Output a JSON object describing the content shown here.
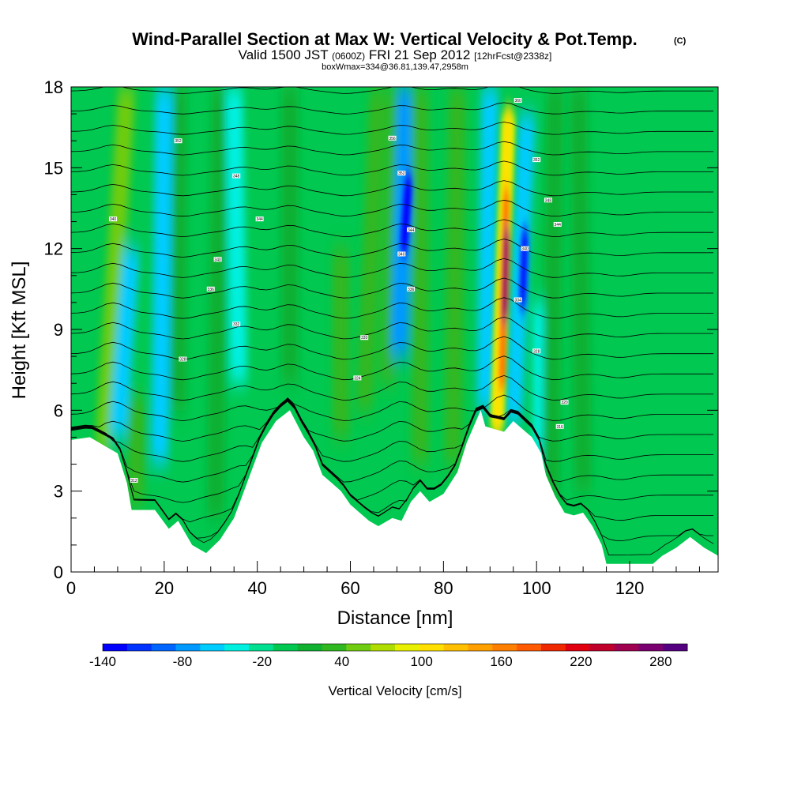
{
  "title": {
    "main": "Wind-Parallel Section at Max W: Vertical Velocity & Pot.Temp.",
    "copyright": "(C)",
    "valid_prefix": "Valid 1500 JST",
    "valid_utc": "(0600Z)",
    "valid_date": "FRI 21 Sep 2012",
    "forecast": "[12hrFcst@2338z]",
    "box": "boxWmax=334@36.81,139.47,2958m"
  },
  "chart_data": {
    "type": "heatmap",
    "xlabel": "Distance [nm]",
    "ylabel": "Height [Kft MSL]",
    "xlim": [
      0,
      139
    ],
    "ylim": [
      0,
      18
    ],
    "x_ticks": [
      0,
      20,
      40,
      60,
      80,
      100,
      120
    ],
    "y_ticks": [
      0,
      3,
      6,
      9,
      12,
      15,
      18
    ],
    "colorbar": {
      "label": "Vertical Velocity [cm/s]",
      "min": -140,
      "max": 300,
      "step": 20,
      "tick_labels": [
        "-140",
        "-80",
        "-20",
        "40",
        "100",
        "160",
        "220",
        "280"
      ],
      "tick_values": [
        -140,
        -80,
        -20,
        40,
        100,
        160,
        220,
        280
      ],
      "colors": [
        "#0000ff",
        "#0033ff",
        "#0066ff",
        "#0099ff",
        "#00ccff",
        "#00f0e0",
        "#00e090",
        "#00c850",
        "#10b030",
        "#30b820",
        "#70cc10",
        "#b0dd00",
        "#e8f000",
        "#ffe000",
        "#ffc000",
        "#ffa000",
        "#ff8000",
        "#ff5a00",
        "#f02800",
        "#e00010",
        "#c0002a",
        "#a00050",
        "#7a0070",
        "#550080"
      ]
    },
    "background_value": "-20 to 0",
    "terrain_height_kft": [
      {
        "x": 0,
        "h": 4.9
      },
      {
        "x": 4,
        "h": 5.0
      },
      {
        "x": 8,
        "h": 4.6
      },
      {
        "x": 10,
        "h": 4.4
      },
      {
        "x": 12,
        "h": 3.3
      },
      {
        "x": 13,
        "h": 2.3
      },
      {
        "x": 18,
        "h": 2.3
      },
      {
        "x": 21,
        "h": 1.6
      },
      {
        "x": 23,
        "h": 1.9
      },
      {
        "x": 26,
        "h": 1.0
      },
      {
        "x": 29,
        "h": 0.7
      },
      {
        "x": 32,
        "h": 1.2
      },
      {
        "x": 35,
        "h": 2.0
      },
      {
        "x": 38,
        "h": 3.4
      },
      {
        "x": 41,
        "h": 4.8
      },
      {
        "x": 44,
        "h": 5.6
      },
      {
        "x": 47,
        "h": 6.0
      },
      {
        "x": 50,
        "h": 5.0
      },
      {
        "x": 52,
        "h": 4.5
      },
      {
        "x": 54,
        "h": 3.6
      },
      {
        "x": 56,
        "h": 3.3
      },
      {
        "x": 58,
        "h": 3.0
      },
      {
        "x": 60,
        "h": 2.5
      },
      {
        "x": 64,
        "h": 1.9
      },
      {
        "x": 66,
        "h": 1.7
      },
      {
        "x": 69,
        "h": 2.0
      },
      {
        "x": 71,
        "h": 1.9
      },
      {
        "x": 73,
        "h": 2.6
      },
      {
        "x": 75,
        "h": 3.0
      },
      {
        "x": 77,
        "h": 2.6
      },
      {
        "x": 80,
        "h": 2.9
      },
      {
        "x": 83,
        "h": 3.7
      },
      {
        "x": 85,
        "h": 4.8
      },
      {
        "x": 88,
        "h": 6.0
      },
      {
        "x": 89,
        "h": 5.4
      },
      {
        "x": 91,
        "h": 5.3
      },
      {
        "x": 93,
        "h": 5.2
      },
      {
        "x": 95,
        "h": 5.6
      },
      {
        "x": 97,
        "h": 5.3
      },
      {
        "x": 99,
        "h": 5.0
      },
      {
        "x": 101,
        "h": 4.4
      },
      {
        "x": 102,
        "h": 3.6
      },
      {
        "x": 104,
        "h": 2.8
      },
      {
        "x": 106,
        "h": 2.2
      },
      {
        "x": 108,
        "h": 2.1
      },
      {
        "x": 110,
        "h": 2.2
      },
      {
        "x": 112,
        "h": 1.7
      },
      {
        "x": 114,
        "h": 1.0
      },
      {
        "x": 115,
        "h": 0.3
      },
      {
        "x": 125,
        "h": 0.3
      },
      {
        "x": 127,
        "h": 0.6
      },
      {
        "x": 130,
        "h": 0.9
      },
      {
        "x": 133,
        "h": 1.3
      },
      {
        "x": 136,
        "h": 0.9
      },
      {
        "x": 139,
        "h": 0.6
      }
    ],
    "plumes": [
      {
        "x0": 7,
        "x1": 12,
        "h0": 4.5,
        "h1": 18,
        "v": 60
      },
      {
        "x0": 14,
        "x1": 14,
        "h0": 2.5,
        "h1": 6.5,
        "v": 50
      },
      {
        "x0": 23,
        "x1": 23,
        "h0": 6,
        "h1": 18,
        "v": 30
      },
      {
        "x0": 31,
        "x1": 32,
        "h0": 2,
        "h1": 18,
        "v": 30
      },
      {
        "x0": 10,
        "x1": 13,
        "h0": 5,
        "h1": 12,
        "v": -60
      },
      {
        "x0": 19,
        "x1": 20,
        "h0": 4,
        "h1": 18,
        "v": -50
      },
      {
        "x0": 36,
        "x1": 35,
        "h0": 7,
        "h1": 18,
        "v": -40
      },
      {
        "x0": 47,
        "x1": 47,
        "h0": 7,
        "h1": 18,
        "v": 30
      },
      {
        "x0": 58,
        "x1": 58,
        "h0": 5,
        "h1": 12,
        "v": 40
      },
      {
        "x0": 63,
        "x1": 66,
        "h0": 6,
        "h1": 18,
        "v": 40
      },
      {
        "x0": 68,
        "x1": 70,
        "h0": 7,
        "h1": 18,
        "v": 50
      },
      {
        "x0": 70.5,
        "x1": 72,
        "h0": 8,
        "h1": 18,
        "v": -70
      },
      {
        "x0": 71.5,
        "x1": 72.5,
        "h0": 12,
        "h1": 14.5,
        "v": -140
      },
      {
        "x0": 75,
        "x1": 75,
        "h0": 4,
        "h1": 18,
        "v": 40
      },
      {
        "x0": 82,
        "x1": 83,
        "h0": 4,
        "h1": 18,
        "v": 40
      },
      {
        "x0": 89,
        "x1": 90,
        "h0": 6,
        "h1": 18,
        "v": -50
      },
      {
        "x0": 91.5,
        "x1": 94,
        "h0": 5.3,
        "h1": 17,
        "v": 100
      },
      {
        "x0": 92.5,
        "x1": 93.5,
        "h0": 7,
        "h1": 14,
        "v": 160
      },
      {
        "x0": 93,
        "x1": 93.5,
        "h0": 9.5,
        "h1": 12.5,
        "v": 240
      },
      {
        "x0": 95,
        "x1": 98,
        "h0": 5.5,
        "h1": 17,
        "v": -60
      },
      {
        "x0": 97,
        "x1": 97.5,
        "h0": 10,
        "h1": 12.5,
        "v": -120
      },
      {
        "x0": 101,
        "x1": 101,
        "h0": 4,
        "h1": 10,
        "v": -30
      },
      {
        "x0": 103,
        "x1": 104,
        "h0": 2.5,
        "h1": 18,
        "v": 30
      },
      {
        "x0": 110,
        "x1": 109,
        "h0": 3,
        "h1": 18,
        "v": 20
      }
    ],
    "contour_labels": [
      {
        "x": 9,
        "h": 13.1,
        "text": "340"
      },
      {
        "x": 23,
        "h": 16.0,
        "text": "352"
      },
      {
        "x": 35.5,
        "h": 14.7,
        "text": "348"
      },
      {
        "x": 40.5,
        "h": 13.1,
        "text": "344"
      },
      {
        "x": 31.5,
        "h": 11.6,
        "text": "340"
      },
      {
        "x": 30,
        "h": 10.5,
        "text": "336"
      },
      {
        "x": 35.5,
        "h": 9.2,
        "text": "332"
      },
      {
        "x": 24,
        "h": 7.9,
        "text": "328"
      },
      {
        "x": 13.5,
        "h": 3.4,
        "text": "312"
      },
      {
        "x": 69,
        "h": 16.1,
        "text": "356"
      },
      {
        "x": 71,
        "h": 14.8,
        "text": "352"
      },
      {
        "x": 73,
        "h": 12.7,
        "text": "344"
      },
      {
        "x": 71,
        "h": 11.8,
        "text": "340"
      },
      {
        "x": 73,
        "h": 10.5,
        "text": "336"
      },
      {
        "x": 63,
        "h": 8.7,
        "text": "330"
      },
      {
        "x": 61.5,
        "h": 7.2,
        "text": "324"
      },
      {
        "x": 96,
        "h": 17.5,
        "text": "360"
      },
      {
        "x": 100,
        "h": 15.3,
        "text": "352"
      },
      {
        "x": 102.5,
        "h": 13.8,
        "text": "348"
      },
      {
        "x": 104.5,
        "h": 12.9,
        "text": "344"
      },
      {
        "x": 97.5,
        "h": 12.0,
        "text": "340"
      },
      {
        "x": 96,
        "h": 10.1,
        "text": "334"
      },
      {
        "x": 100,
        "h": 8.2,
        "text": "328"
      },
      {
        "x": 106,
        "h": 6.3,
        "text": "320"
      },
      {
        "x": 105,
        "h": 5.4,
        "text": "316"
      }
    ]
  }
}
